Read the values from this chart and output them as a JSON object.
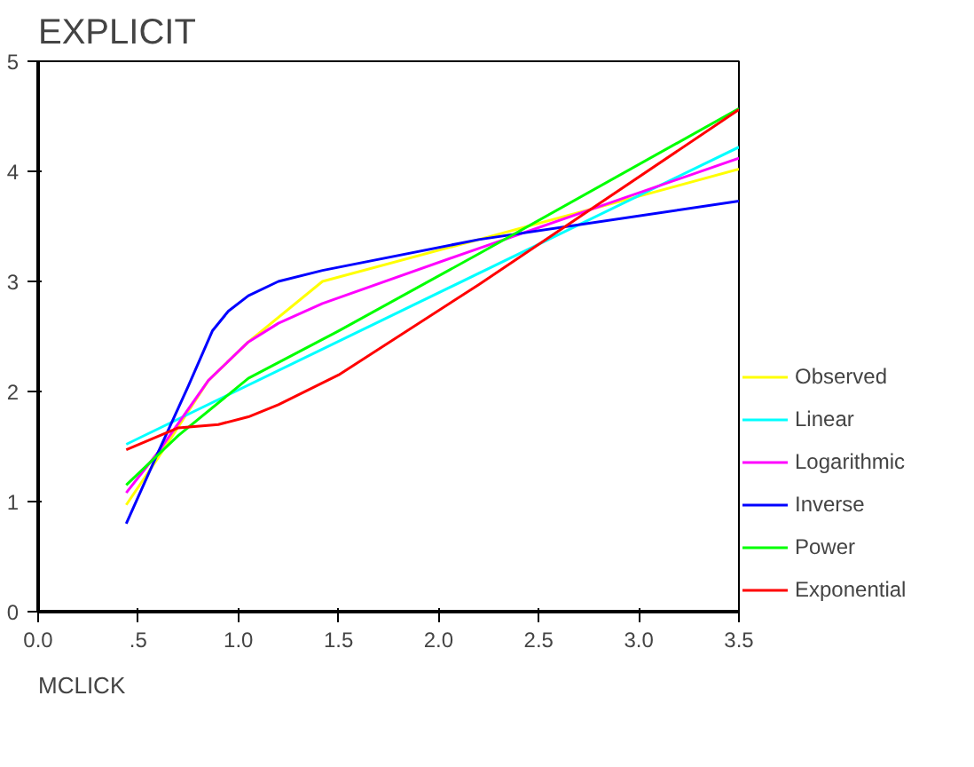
{
  "chart_data": {
    "type": "line",
    "title": "EXPLICIT",
    "xlabel": "MCLICK",
    "xlim": [
      0,
      3.5
    ],
    "ylim": [
      0,
      5
    ],
    "xticks": [
      "0.0",
      {
        "value": 0.5,
        "label": ".5"
      },
      {
        "value": 1,
        "label": "1.0"
      },
      {
        "value": 1.5,
        "label": "1.5"
      },
      {
        "value": 2,
        "label": "2.0"
      },
      {
        "value": 2.5,
        "label": "2.5"
      },
      {
        "value": 3,
        "label": "3.0"
      },
      {
        "value": 3.5,
        "label": "3.5"
      }
    ],
    "yticks": [
      0,
      1,
      2,
      3,
      4,
      5
    ],
    "grid": false,
    "legend": "right",
    "marker": "none",
    "line_style": "solid",
    "series": [
      {
        "name": "Observed",
        "color": "#ffff00",
        "x": [
          0.44,
          0.6,
          0.85,
          1.05,
          1.42,
          2.2,
          3.5
        ],
        "values": [
          0.97,
          1.4,
          2.1,
          2.45,
          3.0,
          3.38,
          4.02
        ]
      },
      {
        "name": "Linear",
        "color": "#00ffff",
        "x": [
          0.44,
          3.5
        ],
        "values": [
          1.52,
          4.22
        ]
      },
      {
        "name": "Logarithmic",
        "color": "#ff00ff",
        "x": [
          0.44,
          0.6,
          0.85,
          1.05,
          1.2,
          1.42,
          2.2,
          3.5
        ],
        "values": [
          1.08,
          1.45,
          2.1,
          2.45,
          2.62,
          2.8,
          3.3,
          4.12
        ]
      },
      {
        "name": "Inverse",
        "color": "#0000ff",
        "x": [
          0.44,
          0.6,
          0.75,
          0.87,
          0.95,
          1.05,
          1.2,
          1.42,
          2.2,
          3.5
        ],
        "values": [
          0.8,
          1.45,
          2.05,
          2.55,
          2.73,
          2.87,
          3.0,
          3.1,
          3.38,
          3.73
        ]
      },
      {
        "name": "Power",
        "color": "#00ff00",
        "x": [
          0.44,
          0.7,
          1.05,
          1.5,
          2.2,
          3.5
        ],
        "values": [
          1.15,
          1.6,
          2.12,
          2.55,
          3.25,
          4.57
        ]
      },
      {
        "name": "Exponential",
        "color": "#ff0000",
        "x": [
          0.44,
          0.7,
          0.9,
          1.05,
          1.2,
          1.5,
          2.2,
          3.5
        ],
        "values": [
          1.47,
          1.67,
          1.7,
          1.77,
          1.88,
          2.15,
          2.97,
          4.56
        ]
      }
    ]
  }
}
